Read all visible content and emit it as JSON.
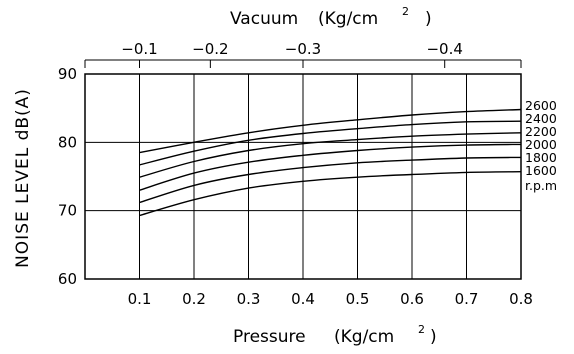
{
  "chart_data": {
    "type": "line",
    "xlabel": "Pressure",
    "xlabel_unit": "(Kg/cm",
    "xlabel_sup": "2",
    "xlabel_close": ")",
    "ylabel": "NOISE LEVEL dB(A)",
    "top_label": "Vacuum",
    "top_label_unit": "(Kg/cm",
    "top_label_sup": "2",
    "top_label_close": ")",
    "xlim": [
      0.0,
      0.8
    ],
    "ylim": [
      60,
      90
    ],
    "x_ticks": [
      {
        "value": 0.1,
        "label": "0.1"
      },
      {
        "value": 0.2,
        "label": "0.2"
      },
      {
        "value": 0.3,
        "label": "0.3"
      },
      {
        "value": 0.4,
        "label": "0.4"
      },
      {
        "value": 0.5,
        "label": "0.5"
      },
      {
        "value": 0.6,
        "label": "0.6"
      },
      {
        "value": 0.7,
        "label": "0.7"
      },
      {
        "value": 0.8,
        "label": "0.8"
      }
    ],
    "y_ticks": [
      {
        "value": 60,
        "label": "60"
      },
      {
        "value": 70,
        "label": "70"
      },
      {
        "value": 80,
        "label": "80"
      },
      {
        "value": 90,
        "label": "90"
      }
    ],
    "top_ticks": [
      {
        "value": -0.1,
        "at_x": 0.1,
        "label": "−0.1"
      },
      {
        "value": -0.2,
        "at_x": 0.23,
        "label": "−0.2"
      },
      {
        "value": -0.3,
        "at_x": 0.4,
        "label": "−0.3"
      },
      {
        "value": -0.4,
        "at_x": 0.66,
        "label": "−0.4"
      }
    ],
    "grid": true,
    "legend_unit": "r.p.m",
    "series": [
      {
        "name": "2600",
        "x": [
          0.1,
          0.2,
          0.3,
          0.4,
          0.5,
          0.6,
          0.7,
          0.8
        ],
        "y": [
          78.5,
          80.0,
          81.4,
          82.5,
          83.3,
          84.0,
          84.5,
          84.8
        ]
      },
      {
        "name": "2400",
        "x": [
          0.1,
          0.2,
          0.3,
          0.4,
          0.5,
          0.6,
          0.7,
          0.8
        ],
        "y": [
          76.7,
          78.7,
          80.3,
          81.3,
          82.0,
          82.6,
          83.0,
          83.1
        ]
      },
      {
        "name": "2200",
        "x": [
          0.1,
          0.2,
          0.3,
          0.4,
          0.5,
          0.6,
          0.7,
          0.8
        ],
        "y": [
          74.9,
          77.2,
          78.8,
          79.8,
          80.4,
          80.9,
          81.2,
          81.4
        ]
      },
      {
        "name": "2000",
        "x": [
          0.1,
          0.2,
          0.3,
          0.4,
          0.5,
          0.6,
          0.7,
          0.8
        ],
        "y": [
          73.0,
          75.5,
          77.1,
          78.1,
          78.8,
          79.3,
          79.6,
          79.7
        ]
      },
      {
        "name": "1800",
        "x": [
          0.1,
          0.2,
          0.3,
          0.4,
          0.5,
          0.6,
          0.7,
          0.8
        ],
        "y": [
          71.2,
          73.7,
          75.3,
          76.3,
          77.0,
          77.4,
          77.7,
          77.8
        ]
      },
      {
        "name": "1600",
        "x": [
          0.1,
          0.2,
          0.3,
          0.4,
          0.5,
          0.6,
          0.7,
          0.8
        ],
        "y": [
          69.3,
          71.6,
          73.3,
          74.3,
          74.9,
          75.3,
          75.6,
          75.7
        ]
      }
    ]
  }
}
